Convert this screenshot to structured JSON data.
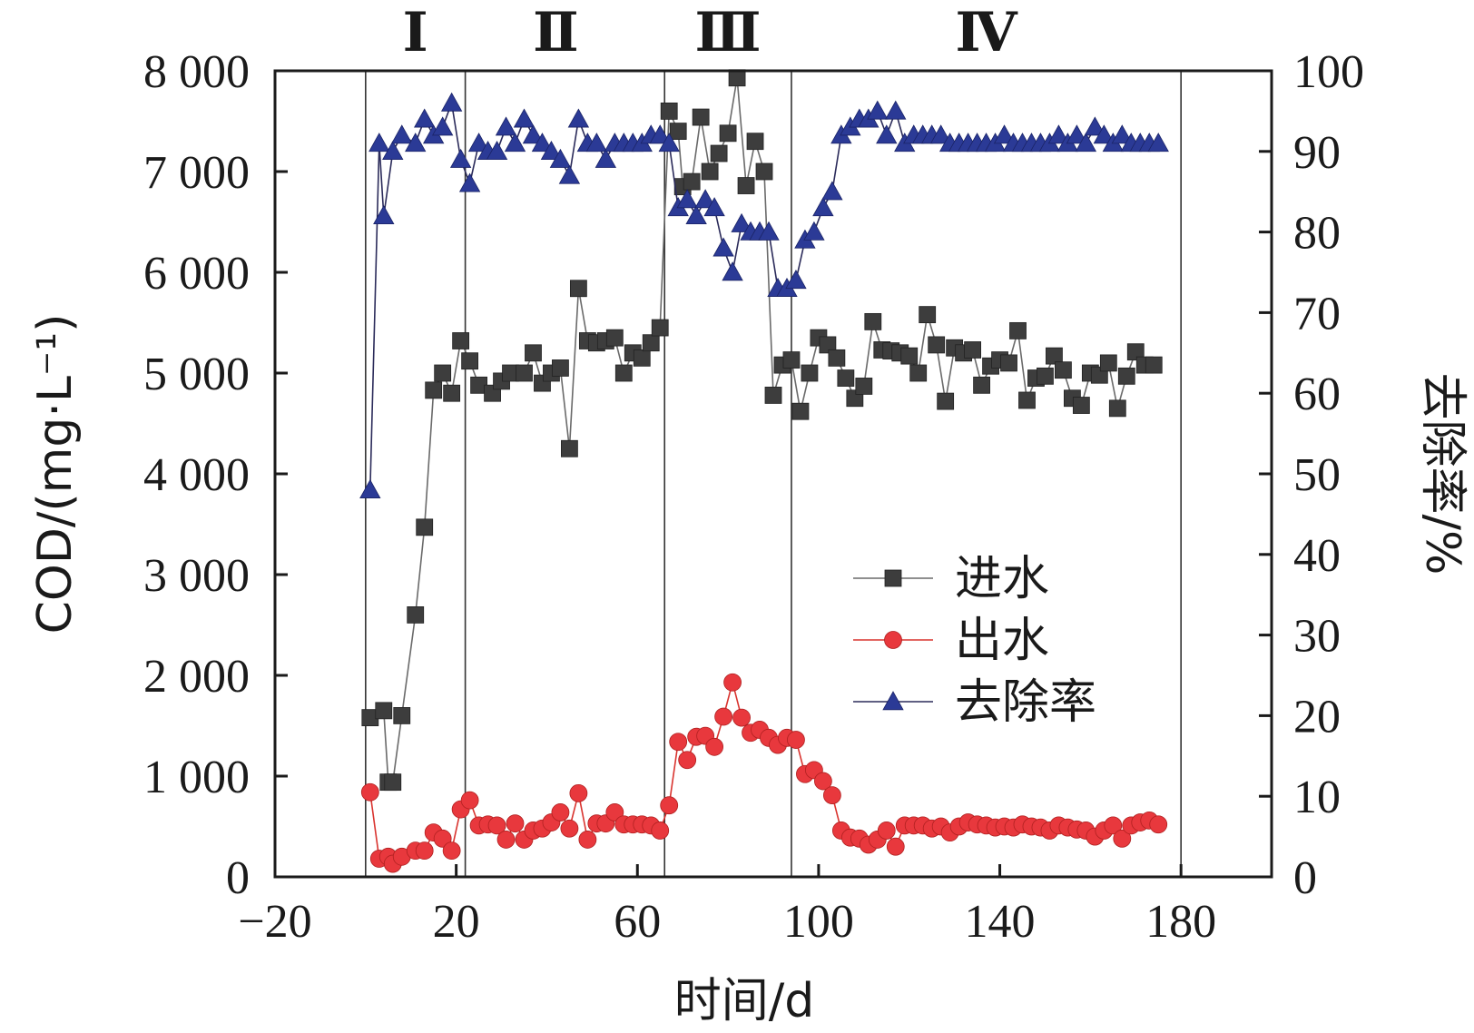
{
  "chart_data": {
    "type": "line",
    "xlabel": "时间/d",
    "ylabel": "COD/(mg·L⁻¹)",
    "y2label": "去除率/%",
    "xlim": [
      -20,
      200
    ],
    "ylim": [
      0,
      8000
    ],
    "y2lim": [
      0,
      100
    ],
    "grid": false,
    "legend_position": "lower-right",
    "x_ticks": [
      -20,
      20,
      60,
      100,
      140,
      180
    ],
    "x_tick_labels": [
      "−20",
      "20",
      "60",
      "100",
      "140",
      "180"
    ],
    "y_ticks": [
      0,
      1000,
      2000,
      3000,
      4000,
      5000,
      6000,
      7000,
      8000
    ],
    "y_tick_labels": [
      "0",
      "1 000",
      "2 000",
      "3 000",
      "4 000",
      "5 000",
      "6 000",
      "7 000",
      "8 000"
    ],
    "y2_ticks": [
      0,
      10,
      20,
      30,
      40,
      50,
      60,
      70,
      80,
      90,
      100
    ],
    "y2_tick_labels": [
      "0",
      "10",
      "20",
      "30",
      "40",
      "50",
      "60",
      "70",
      "80",
      "90",
      "100"
    ],
    "phase_boundaries": [
      0,
      22,
      66,
      94,
      180
    ],
    "phases": [
      {
        "label": "Ⅰ",
        "x": 11
      },
      {
        "label": "Ⅱ",
        "x": 42
      },
      {
        "label": "Ⅲ",
        "x": 80
      },
      {
        "label": "Ⅳ",
        "x": 137
      }
    ],
    "series": [
      {
        "name": "进水",
        "axis": "left",
        "marker": "square",
        "color": "#3d3d3d",
        "line_color": "#6a6a6a",
        "points": [
          [
            1,
            1580
          ],
          [
            4,
            1650
          ],
          [
            5,
            940
          ],
          [
            6,
            940
          ],
          [
            8,
            1600
          ],
          [
            11,
            2600
          ],
          [
            13,
            3470
          ],
          [
            15,
            4830
          ],
          [
            17,
            5000
          ],
          [
            19,
            4800
          ],
          [
            21,
            5320
          ],
          [
            23,
            5120
          ],
          [
            25,
            4880
          ],
          [
            28,
            4800
          ],
          [
            30,
            4920
          ],
          [
            32,
            5000
          ],
          [
            35,
            5000
          ],
          [
            37,
            5200
          ],
          [
            39,
            4900
          ],
          [
            41,
            5000
          ],
          [
            43,
            5050
          ],
          [
            45,
            4250
          ],
          [
            47,
            5840
          ],
          [
            49,
            5320
          ],
          [
            51,
            5300
          ],
          [
            53,
            5320
          ],
          [
            55,
            5350
          ],
          [
            57,
            5000
          ],
          [
            59,
            5200
          ],
          [
            61,
            5150
          ],
          [
            63,
            5300
          ],
          [
            65,
            5450
          ],
          [
            67,
            7600
          ],
          [
            69,
            7400
          ],
          [
            70,
            6850
          ],
          [
            72,
            6900
          ],
          [
            74,
            7540
          ],
          [
            76,
            7000
          ],
          [
            78,
            7180
          ],
          [
            80,
            7380
          ],
          [
            82,
            7930
          ],
          [
            84,
            6860
          ],
          [
            86,
            7300
          ],
          [
            88,
            7000
          ],
          [
            90,
            4780
          ],
          [
            92,
            5080
          ],
          [
            94,
            5130
          ],
          [
            96,
            4620
          ],
          [
            98,
            5000
          ],
          [
            100,
            5350
          ],
          [
            102,
            5280
          ],
          [
            104,
            5150
          ],
          [
            106,
            4950
          ],
          [
            108,
            4750
          ],
          [
            110,
            4870
          ],
          [
            112,
            5510
          ],
          [
            114,
            5230
          ],
          [
            116,
            5220
          ],
          [
            118,
            5200
          ],
          [
            120,
            5170
          ],
          [
            122,
            5000
          ],
          [
            124,
            5580
          ],
          [
            126,
            5280
          ],
          [
            128,
            4720
          ],
          [
            130,
            5250
          ],
          [
            132,
            5200
          ],
          [
            134,
            5230
          ],
          [
            136,
            4880
          ],
          [
            138,
            5070
          ],
          [
            140,
            5130
          ],
          [
            142,
            5100
          ],
          [
            144,
            5420
          ],
          [
            146,
            4730
          ],
          [
            148,
            4950
          ],
          [
            150,
            4970
          ],
          [
            152,
            5170
          ],
          [
            154,
            5030
          ],
          [
            156,
            4750
          ],
          [
            158,
            4680
          ],
          [
            160,
            5000
          ],
          [
            162,
            4980
          ],
          [
            164,
            5100
          ],
          [
            166,
            4650
          ],
          [
            168,
            4970
          ],
          [
            170,
            5210
          ],
          [
            172,
            5080
          ],
          [
            174,
            5080
          ]
        ]
      },
      {
        "name": "出水",
        "axis": "left",
        "marker": "circle",
        "color": "#e8383d",
        "line_color": "#d9342f",
        "points": [
          [
            1,
            840
          ],
          [
            3,
            180
          ],
          [
            5,
            200
          ],
          [
            6,
            130
          ],
          [
            8,
            200
          ],
          [
            11,
            260
          ],
          [
            13,
            260
          ],
          [
            15,
            440
          ],
          [
            17,
            380
          ],
          [
            19,
            260
          ],
          [
            21,
            670
          ],
          [
            23,
            760
          ],
          [
            25,
            510
          ],
          [
            27,
            520
          ],
          [
            29,
            510
          ],
          [
            31,
            370
          ],
          [
            33,
            530
          ],
          [
            35,
            370
          ],
          [
            37,
            460
          ],
          [
            39,
            480
          ],
          [
            41,
            540
          ],
          [
            43,
            640
          ],
          [
            45,
            480
          ],
          [
            47,
            830
          ],
          [
            49,
            370
          ],
          [
            51,
            530
          ],
          [
            53,
            530
          ],
          [
            55,
            640
          ],
          [
            57,
            520
          ],
          [
            59,
            520
          ],
          [
            61,
            520
          ],
          [
            63,
            510
          ],
          [
            65,
            460
          ],
          [
            67,
            710
          ],
          [
            69,
            1340
          ],
          [
            71,
            1160
          ],
          [
            73,
            1390
          ],
          [
            75,
            1400
          ],
          [
            77,
            1290
          ],
          [
            79,
            1590
          ],
          [
            81,
            1930
          ],
          [
            83,
            1580
          ],
          [
            85,
            1430
          ],
          [
            87,
            1460
          ],
          [
            89,
            1380
          ],
          [
            91,
            1310
          ],
          [
            93,
            1380
          ],
          [
            95,
            1360
          ],
          [
            97,
            1020
          ],
          [
            99,
            1060
          ],
          [
            101,
            950
          ],
          [
            103,
            810
          ],
          [
            105,
            460
          ],
          [
            107,
            390
          ],
          [
            109,
            380
          ],
          [
            111,
            320
          ],
          [
            113,
            370
          ],
          [
            115,
            460
          ],
          [
            117,
            300
          ],
          [
            119,
            510
          ],
          [
            121,
            510
          ],
          [
            123,
            510
          ],
          [
            125,
            480
          ],
          [
            127,
            500
          ],
          [
            129,
            440
          ],
          [
            131,
            500
          ],
          [
            133,
            540
          ],
          [
            135,
            520
          ],
          [
            137,
            510
          ],
          [
            139,
            490
          ],
          [
            141,
            500
          ],
          [
            143,
            490
          ],
          [
            145,
            520
          ],
          [
            147,
            500
          ],
          [
            149,
            490
          ],
          [
            151,
            460
          ],
          [
            153,
            510
          ],
          [
            155,
            490
          ],
          [
            157,
            470
          ],
          [
            159,
            460
          ],
          [
            161,
            400
          ],
          [
            163,
            460
          ],
          [
            165,
            510
          ],
          [
            167,
            380
          ],
          [
            169,
            510
          ],
          [
            171,
            540
          ],
          [
            173,
            560
          ],
          [
            175,
            520
          ]
        ]
      },
      {
        "name": "去除率",
        "axis": "right",
        "marker": "triangle",
        "color": "#2b3a96",
        "line_color": "#2b2b5a",
        "points": [
          [
            1,
            48
          ],
          [
            3,
            91
          ],
          [
            4,
            82
          ],
          [
            6,
            90
          ],
          [
            8,
            92
          ],
          [
            11,
            91
          ],
          [
            13,
            94
          ],
          [
            15,
            92
          ],
          [
            17,
            93
          ],
          [
            19,
            96
          ],
          [
            21,
            89
          ],
          [
            23,
            86
          ],
          [
            25,
            91
          ],
          [
            27,
            90
          ],
          [
            29,
            90
          ],
          [
            31,
            93
          ],
          [
            33,
            91
          ],
          [
            35,
            94
          ],
          [
            37,
            92
          ],
          [
            39,
            91
          ],
          [
            41,
            90
          ],
          [
            43,
            89
          ],
          [
            45,
            87
          ],
          [
            47,
            94
          ],
          [
            49,
            91
          ],
          [
            51,
            91
          ],
          [
            53,
            89
          ],
          [
            55,
            91
          ],
          [
            57,
            91
          ],
          [
            59,
            91
          ],
          [
            61,
            91
          ],
          [
            63,
            92
          ],
          [
            65,
            92
          ],
          [
            67,
            91
          ],
          [
            69,
            83
          ],
          [
            71,
            84
          ],
          [
            73,
            82
          ],
          [
            75,
            84
          ],
          [
            77,
            83
          ],
          [
            79,
            78
          ],
          [
            81,
            75
          ],
          [
            83,
            81
          ],
          [
            85,
            80
          ],
          [
            87,
            80
          ],
          [
            89,
            80
          ],
          [
            91,
            73
          ],
          [
            93,
            73
          ],
          [
            95,
            74
          ],
          [
            97,
            79
          ],
          [
            99,
            80
          ],
          [
            101,
            83
          ],
          [
            103,
            85
          ],
          [
            105,
            92
          ],
          [
            107,
            93
          ],
          [
            109,
            94
          ],
          [
            111,
            94
          ],
          [
            113,
            95
          ],
          [
            115,
            92
          ],
          [
            117,
            95
          ],
          [
            119,
            91
          ],
          [
            121,
            92
          ],
          [
            123,
            92
          ],
          [
            125,
            92
          ],
          [
            127,
            92
          ],
          [
            129,
            91
          ],
          [
            131,
            91
          ],
          [
            133,
            91
          ],
          [
            135,
            91
          ],
          [
            137,
            91
          ],
          [
            139,
            91
          ],
          [
            141,
            92
          ],
          [
            143,
            91
          ],
          [
            145,
            91
          ],
          [
            147,
            91
          ],
          [
            149,
            91
          ],
          [
            151,
            91
          ],
          [
            153,
            92
          ],
          [
            155,
            91
          ],
          [
            157,
            92
          ],
          [
            159,
            91
          ],
          [
            161,
            93
          ],
          [
            163,
            92
          ],
          [
            165,
            91
          ],
          [
            167,
            92
          ],
          [
            169,
            91
          ],
          [
            171,
            91
          ],
          [
            173,
            91
          ],
          [
            175,
            91
          ]
        ]
      }
    ]
  }
}
